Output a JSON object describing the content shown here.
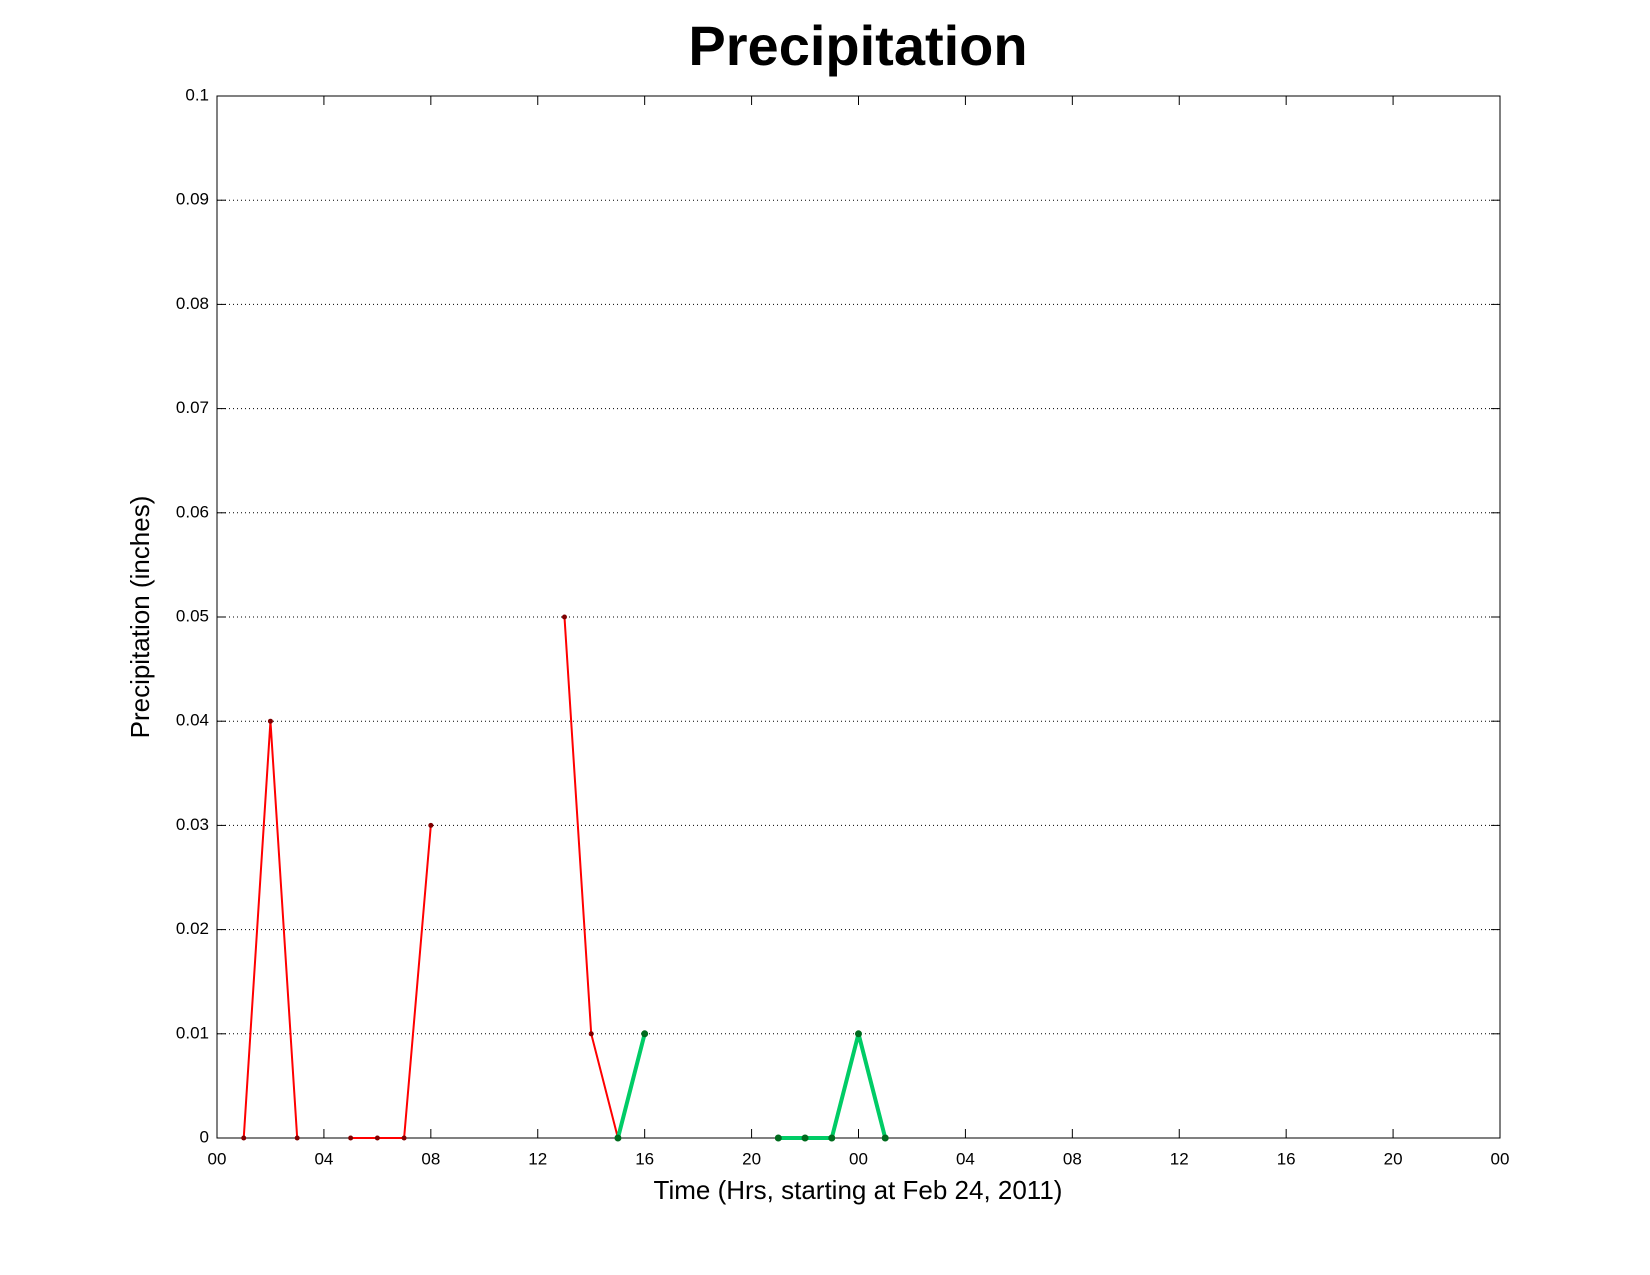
{
  "chart_data": {
    "type": "line",
    "title": "Precipitation",
    "xlabel": "Time (Hrs, starting at Feb 24, 2011)",
    "ylabel": "Precipitation (inches)",
    "xlim": [
      0,
      48
    ],
    "xticks": [
      {
        "value": 0,
        "label": "00"
      },
      {
        "value": 4,
        "label": "04"
      },
      {
        "value": 8,
        "label": "08"
      },
      {
        "value": 12,
        "label": "12"
      },
      {
        "value": 16,
        "label": "16"
      },
      {
        "value": 20,
        "label": "20"
      },
      {
        "value": 24,
        "label": "00"
      },
      {
        "value": 28,
        "label": "04"
      },
      {
        "value": 32,
        "label": "08"
      },
      {
        "value": 36,
        "label": "12"
      },
      {
        "value": 40,
        "label": "16"
      },
      {
        "value": 44,
        "label": "20"
      },
      {
        "value": 48,
        "label": "00"
      }
    ],
    "ylim": [
      0,
      0.1
    ],
    "yticks": [
      0,
      0.01,
      0.02,
      0.03,
      0.04,
      0.05,
      0.06,
      0.07,
      0.08,
      0.09,
      0.1
    ],
    "grid": true,
    "series": [
      {
        "color": "#ff0000",
        "marker_color": "#800000",
        "line_width": 2,
        "x": [
          1,
          2,
          3,
          4,
          5,
          6,
          7,
          8,
          9,
          13,
          14,
          15
        ],
        "values": [
          0,
          0.04,
          0,
          null,
          0,
          0,
          0,
          0.03,
          null,
          0.05,
          0.01,
          0
        ]
      },
      {
        "color": "#00cc66",
        "marker_color": "#006b1e",
        "line_width": 4,
        "x": [
          15,
          16,
          17,
          21,
          22,
          23,
          24,
          25
        ],
        "values": [
          0,
          0.01,
          null,
          0,
          0,
          0,
          0.01,
          0
        ]
      }
    ]
  }
}
